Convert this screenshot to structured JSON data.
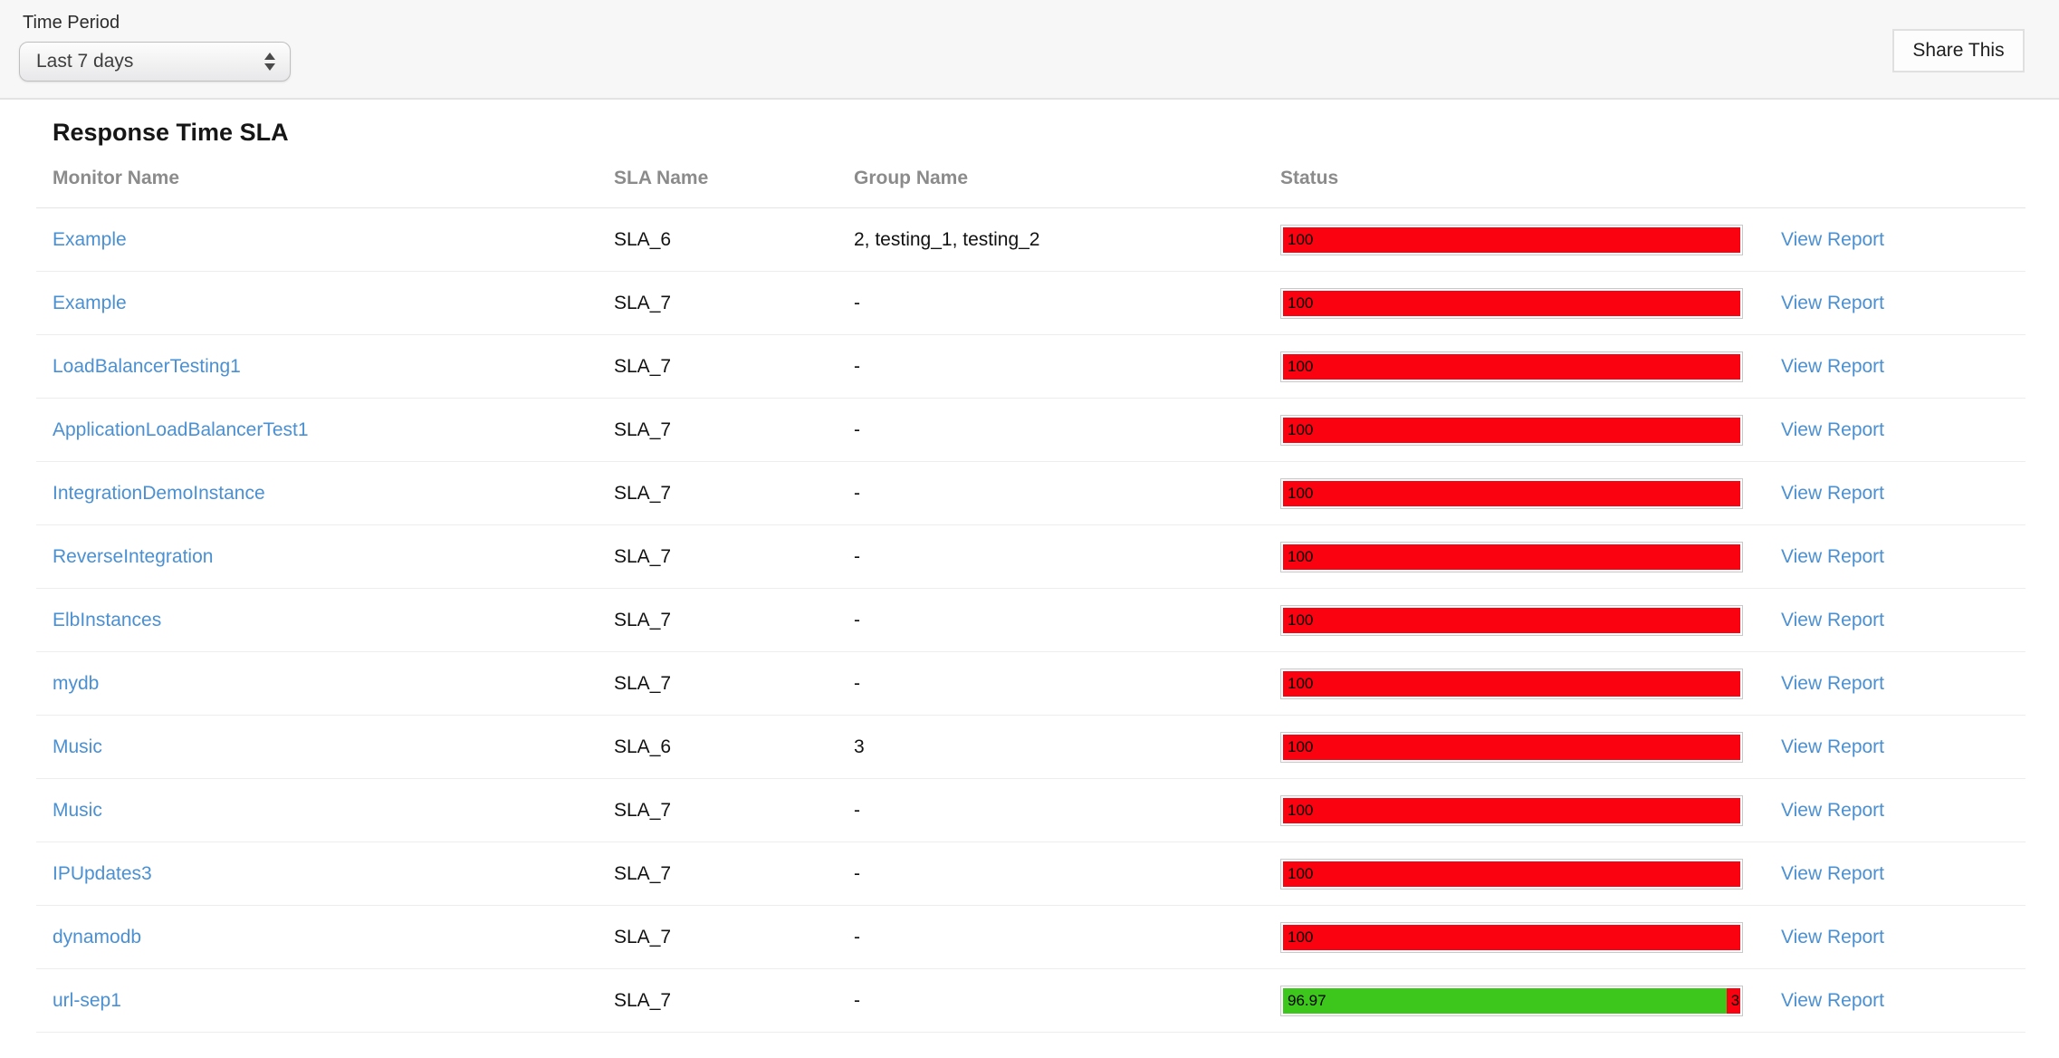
{
  "topbar": {
    "time_period_label": "Time Period",
    "time_period_value": "Last 7 days",
    "share_button_label": "Share This"
  },
  "report": {
    "title": "Response Time SLA",
    "columns": {
      "monitor": "Monitor Name",
      "sla": "SLA Name",
      "group": "Group Name",
      "status": "Status"
    },
    "view_report_label": "View Report",
    "colors": {
      "red": "#fb0211",
      "green": "#3dc71d",
      "link_blue": "#4a90d2"
    },
    "rows": [
      {
        "monitor": "Example",
        "sla": "SLA_6",
        "group": "2, testing_1, testing_2",
        "segments": [
          {
            "color": "red",
            "value": 100,
            "label": "100"
          }
        ]
      },
      {
        "monitor": "Example",
        "sla": "SLA_7",
        "group": "-",
        "segments": [
          {
            "color": "red",
            "value": 100,
            "label": "100"
          }
        ]
      },
      {
        "monitor": "LoadBalancerTesting1",
        "sla": "SLA_7",
        "group": "-",
        "segments": [
          {
            "color": "red",
            "value": 100,
            "label": "100"
          }
        ]
      },
      {
        "monitor": "ApplicationLoadBalancerTest1",
        "sla": "SLA_7",
        "group": "-",
        "segments": [
          {
            "color": "red",
            "value": 100,
            "label": "100"
          }
        ]
      },
      {
        "monitor": "IntegrationDemoInstance",
        "sla": "SLA_7",
        "group": "-",
        "segments": [
          {
            "color": "red",
            "value": 100,
            "label": "100"
          }
        ]
      },
      {
        "monitor": "ReverseIntegration",
        "sla": "SLA_7",
        "group": "-",
        "segments": [
          {
            "color": "red",
            "value": 100,
            "label": "100"
          }
        ]
      },
      {
        "monitor": "ElbInstances",
        "sla": "SLA_7",
        "group": "-",
        "segments": [
          {
            "color": "red",
            "value": 100,
            "label": "100"
          }
        ]
      },
      {
        "monitor": "mydb",
        "sla": "SLA_7",
        "group": "-",
        "segments": [
          {
            "color": "red",
            "value": 100,
            "label": "100"
          }
        ]
      },
      {
        "monitor": "Music",
        "sla": "SLA_6",
        "group": "3",
        "segments": [
          {
            "color": "red",
            "value": 100,
            "label": "100"
          }
        ]
      },
      {
        "monitor": "Music",
        "sla": "SLA_7",
        "group": "-",
        "segments": [
          {
            "color": "red",
            "value": 100,
            "label": "100"
          }
        ]
      },
      {
        "monitor": "IPUpdates3",
        "sla": "SLA_7",
        "group": "-",
        "segments": [
          {
            "color": "red",
            "value": 100,
            "label": "100"
          }
        ]
      },
      {
        "monitor": "dynamodb",
        "sla": "SLA_7",
        "group": "-",
        "segments": [
          {
            "color": "red",
            "value": 100,
            "label": "100"
          }
        ]
      },
      {
        "monitor": "url-sep1",
        "sla": "SLA_7",
        "group": "-",
        "segments": [
          {
            "color": "green",
            "value": 96.97,
            "label": "96.97"
          },
          {
            "color": "red",
            "value": 3.03,
            "label": "3"
          }
        ]
      }
    ]
  }
}
